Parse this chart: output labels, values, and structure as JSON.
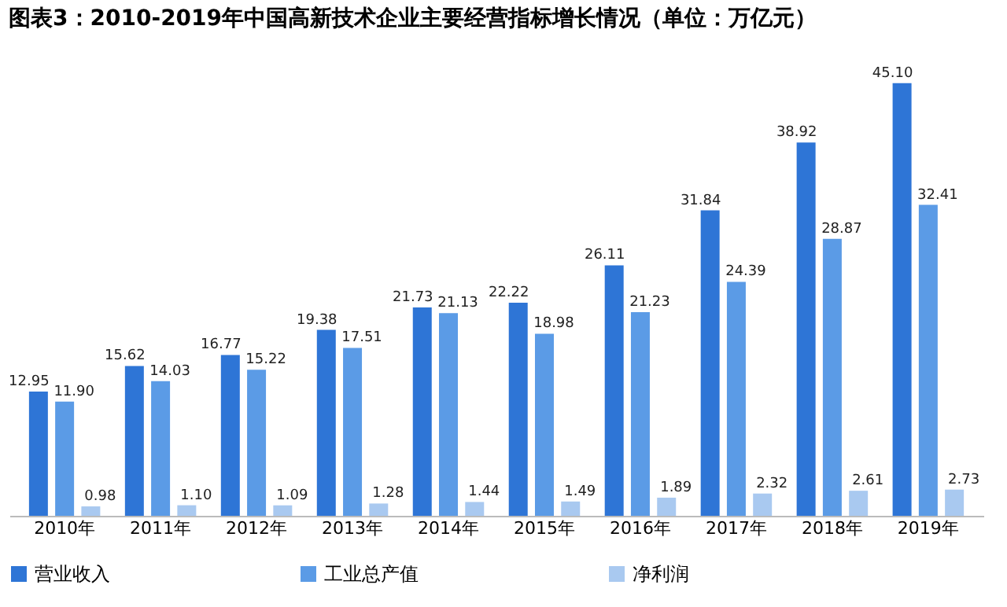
{
  "chart_data": {
    "type": "bar",
    "title": "图表3：2010-2019年中国高新技术企业主要经营指标增长情况（单位：万亿元）",
    "categories": [
      "2010年",
      "2011年",
      "2012年",
      "2013年",
      "2014年",
      "2015年",
      "2016年",
      "2017年",
      "2018年",
      "2019年"
    ],
    "series": [
      {
        "name": "营业收入",
        "color": "#2e75d6",
        "values": [
          12.95,
          15.62,
          16.77,
          19.38,
          21.73,
          22.22,
          26.11,
          31.84,
          38.92,
          45.1
        ],
        "value_labels": [
          "12.95",
          "15.62",
          "16.77",
          "19.38",
          "21.73",
          "22.22",
          "26.11",
          "31.84",
          "38.92",
          "45.10"
        ]
      },
      {
        "name": "工业总产值",
        "color": "#5b9be6",
        "values": [
          11.9,
          14.03,
          15.22,
          17.51,
          21.13,
          18.98,
          21.23,
          24.39,
          28.87,
          32.41
        ],
        "value_labels": [
          "11.90",
          "14.03",
          "15.22",
          "17.51",
          "21.13",
          "18.98",
          "21.23",
          "24.39",
          "28.87",
          "32.41"
        ]
      },
      {
        "name": "净利润",
        "color": "#a9c9f0",
        "values": [
          0.98,
          1.1,
          1.09,
          1.28,
          1.44,
          1.49,
          1.89,
          2.32,
          2.61,
          2.73
        ],
        "value_labels": [
          "0.98",
          "1.10",
          "1.09",
          "1.28",
          "1.44",
          "1.49",
          "1.89",
          "2.32",
          "2.61",
          "2.73"
        ]
      }
    ],
    "legend": "bottom",
    "grid": false
  }
}
